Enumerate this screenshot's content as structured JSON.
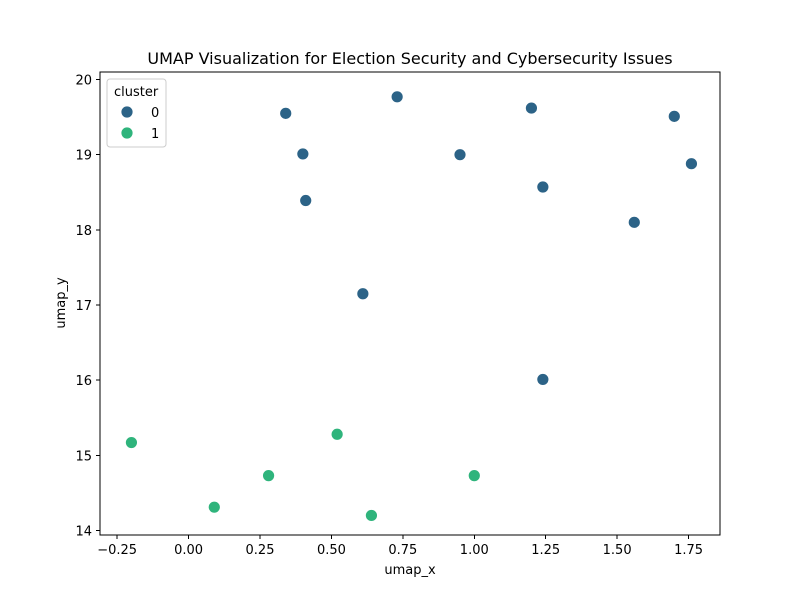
{
  "chart_data": {
    "type": "scatter",
    "title": "UMAP Visualization for Election Security and Cybersecurity Issues",
    "xlabel": "umap_x",
    "ylabel": "umap_y",
    "xlim": [
      -0.31,
      1.86
    ],
    "ylim": [
      13.94,
      20.1
    ],
    "x_ticks": [
      -0.25,
      0.0,
      0.25,
      0.5,
      0.75,
      1.0,
      1.25,
      1.5,
      1.75
    ],
    "x_tick_labels": [
      "−0.25",
      "0.00",
      "0.25",
      "0.50",
      "0.75",
      "1.00",
      "1.25",
      "1.50",
      "1.75"
    ],
    "y_ticks": [
      14,
      15,
      16,
      17,
      18,
      19,
      20
    ],
    "y_tick_labels": [
      "14",
      "15",
      "16",
      "17",
      "18",
      "19",
      "20"
    ],
    "grid": false,
    "legend": {
      "title": "cluster",
      "position": "top-left"
    },
    "series": [
      {
        "name": "0",
        "color": "#2c6387",
        "points": [
          {
            "x": 0.34,
            "y": 19.55
          },
          {
            "x": 0.73,
            "y": 19.77
          },
          {
            "x": 0.4,
            "y": 19.01
          },
          {
            "x": 0.41,
            "y": 18.39
          },
          {
            "x": 0.95,
            "y": 19.0
          },
          {
            "x": 1.2,
            "y": 19.62
          },
          {
            "x": 1.24,
            "y": 18.57
          },
          {
            "x": 1.7,
            "y": 19.51
          },
          {
            "x": 1.76,
            "y": 18.88
          },
          {
            "x": 1.56,
            "y": 18.1
          },
          {
            "x": 0.61,
            "y": 17.15
          },
          {
            "x": 1.24,
            "y": 16.01
          }
        ]
      },
      {
        "name": "1",
        "color": "#2fb47c",
        "points": [
          {
            "x": -0.2,
            "y": 15.17
          },
          {
            "x": 0.52,
            "y": 15.28
          },
          {
            "x": 0.28,
            "y": 14.73
          },
          {
            "x": 0.09,
            "y": 14.31
          },
          {
            "x": 1.0,
            "y": 14.73
          },
          {
            "x": 0.64,
            "y": 14.2
          }
        ]
      }
    ]
  }
}
